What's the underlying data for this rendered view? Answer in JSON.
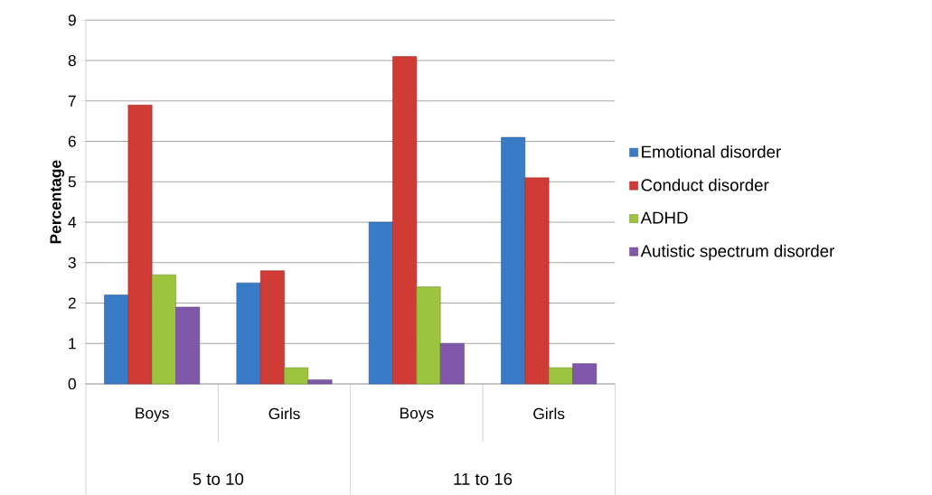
{
  "chart_data": {
    "type": "bar",
    "ylabel": "Percentage",
    "categories": [
      "Boys",
      "Girls",
      "Boys",
      "Girls"
    ],
    "annotations": [
      "5 to 10",
      "11 to 16"
    ],
    "series": [
      {
        "name": "Emotional disorder",
        "color": "#3a7bc8",
        "values": [
          2.2,
          2.5,
          4.0,
          6.1
        ]
      },
      {
        "name": "Conduct disorder",
        "color": "#d03b36",
        "values": [
          6.9,
          2.8,
          8.1,
          5.1
        ]
      },
      {
        "name": "ADHD",
        "color": "#9cc43e",
        "values": [
          2.7,
          0.4,
          2.4,
          0.4
        ]
      },
      {
        "name": "Autistic spectrum disorder",
        "color": "#8058aa",
        "values": [
          1.9,
          0.1,
          1.0,
          0.5
        ]
      }
    ],
    "ylim": [
      0,
      9
    ],
    "yticks": [
      0,
      1,
      2,
      3,
      4,
      5,
      6,
      7,
      8,
      9
    ],
    "grid": "y",
    "legend": "right"
  }
}
